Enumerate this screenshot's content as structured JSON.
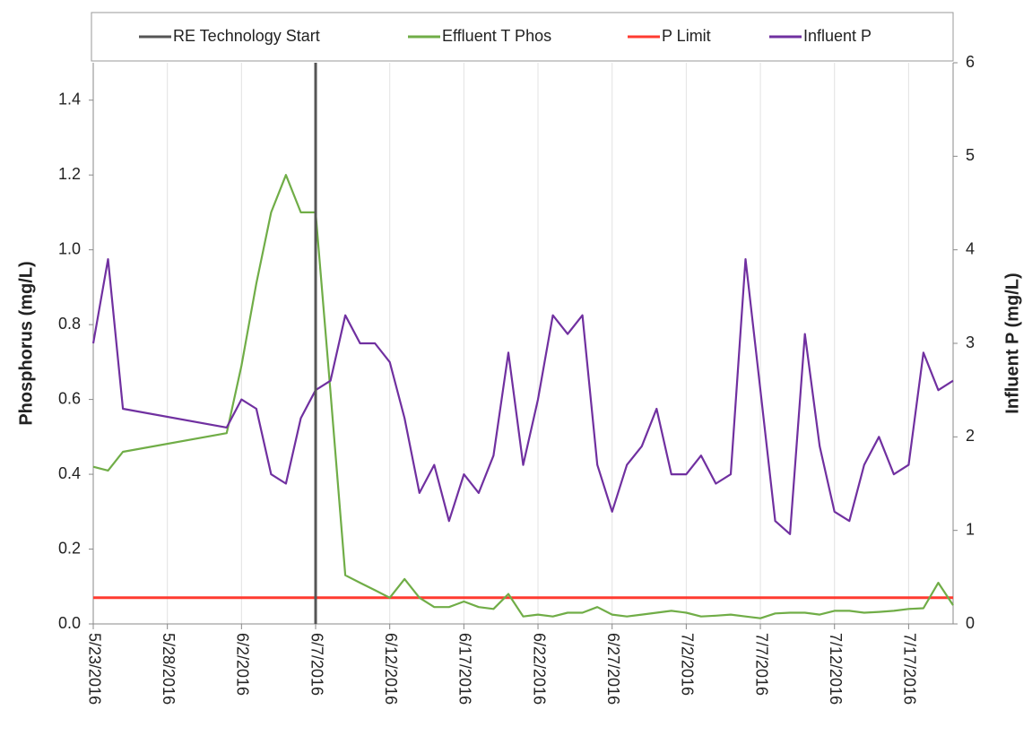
{
  "chart_data": {
    "type": "line",
    "x": [
      "2016-05-23",
      "2016-05-24",
      "2016-05-25",
      "2016-06-01",
      "2016-06-02",
      "2016-06-03",
      "2016-06-04",
      "2016-06-05",
      "2016-06-06",
      "2016-06-07",
      "2016-06-08",
      "2016-06-09",
      "2016-06-10",
      "2016-06-11",
      "2016-06-12",
      "2016-06-13",
      "2016-06-14",
      "2016-06-15",
      "2016-06-16",
      "2016-06-17",
      "2016-06-18",
      "2016-06-19",
      "2016-06-20",
      "2016-06-21",
      "2016-06-22",
      "2016-06-23",
      "2016-06-24",
      "2016-06-25",
      "2016-06-26",
      "2016-06-27",
      "2016-06-28",
      "2016-06-29",
      "2016-06-30",
      "2016-07-01",
      "2016-07-02",
      "2016-07-03",
      "2016-07-04",
      "2016-07-05",
      "2016-07-06",
      "2016-07-07",
      "2016-07-08",
      "2016-07-09",
      "2016-07-10",
      "2016-07-11",
      "2016-07-12",
      "2016-07-13",
      "2016-07-14",
      "2016-07-15",
      "2016-07-16",
      "2016-07-17",
      "2016-07-18",
      "2016-07-19",
      "2016-07-20"
    ],
    "series": [
      {
        "name": "Effluent T Phos",
        "color": "#70ad47",
        "values": [
          0.42,
          0.41,
          0.46,
          0.51,
          0.69,
          0.91,
          1.1,
          1.2,
          1.1,
          1.1,
          0.62,
          0.13,
          0.11,
          0.09,
          0.07,
          0.12,
          0.07,
          0.045,
          0.045,
          0.06,
          0.045,
          0.04,
          0.08,
          0.02,
          0.025,
          0.02,
          0.03,
          0.03,
          0.045,
          0.025,
          0.02,
          0.025,
          0.03,
          0.035,
          0.03,
          0.02,
          0.022,
          0.025,
          0.02,
          0.015,
          0.028,
          0.03,
          0.03,
          0.025,
          0.035,
          0.035,
          0.03,
          0.032,
          0.035,
          0.04,
          0.042,
          0.11,
          0.05
        ]
      },
      {
        "name": "Influent P",
        "color": "#7030a0",
        "axis": "y2",
        "values": [
          3.0,
          3.9,
          2.3,
          2.1,
          2.4,
          2.3,
          1.6,
          1.5,
          2.2,
          2.5,
          2.6,
          3.3,
          3.0,
          3.0,
          2.8,
          2.2,
          1.4,
          1.7,
          1.1,
          1.6,
          1.4,
          1.8,
          2.9,
          1.7,
          2.4,
          3.3,
          3.1,
          3.3,
          1.7,
          1.2,
          1.7,
          1.9,
          2.3,
          1.6,
          1.6,
          1.8,
          1.5,
          1.6,
          3.9,
          2.5,
          1.1,
          0.96,
          3.1,
          1.9,
          1.2,
          1.1,
          1.7,
          2.0,
          1.6,
          1.7,
          2.9,
          2.5,
          2.6
        ]
      }
    ],
    "vlines": [
      {
        "name": "RE Technology Start",
        "x": "2016-06-07",
        "color": "#555555"
      }
    ],
    "hlines": [
      {
        "name": "P Limit",
        "value": 0.07,
        "color": "#ff3b30"
      }
    ],
    "ylabel": "Phosphorus (mg/L)",
    "y2label": "Influent P (mg/L)",
    "xlim": [
      "2016-05-23",
      "2016-07-20"
    ],
    "xticks": [
      {
        "value": "2016-05-23",
        "label": "5/23/2016"
      },
      {
        "value": "2016-05-28",
        "label": "5/28/2016"
      },
      {
        "value": "2016-06-02",
        "label": "6/2/2016"
      },
      {
        "value": "2016-06-07",
        "label": "6/7/2016"
      },
      {
        "value": "2016-06-12",
        "label": "6/12/2016"
      },
      {
        "value": "2016-06-17",
        "label": "6/17/2016"
      },
      {
        "value": "2016-06-22",
        "label": "6/22/2016"
      },
      {
        "value": "2016-06-27",
        "label": "6/27/2016"
      },
      {
        "value": "2016-07-02",
        "label": "7/2/2016"
      },
      {
        "value": "2016-07-07",
        "label": "7/7/2016"
      },
      {
        "value": "2016-07-12",
        "label": "7/12/2016"
      },
      {
        "value": "2016-07-17",
        "label": "7/17/2016"
      }
    ],
    "ylim": [
      0,
      1.5
    ],
    "yticks": [
      {
        "value": 0,
        "label": "0.0"
      },
      0.2,
      0.4,
      0.6,
      0.8,
      {
        "value": 1,
        "label": "1.0"
      },
      1.2,
      1.4
    ],
    "y2lim": [
      0,
      6
    ],
    "y2ticks": [
      0,
      1,
      2,
      3,
      4,
      5,
      6
    ],
    "grid": "x",
    "legend": "top"
  }
}
